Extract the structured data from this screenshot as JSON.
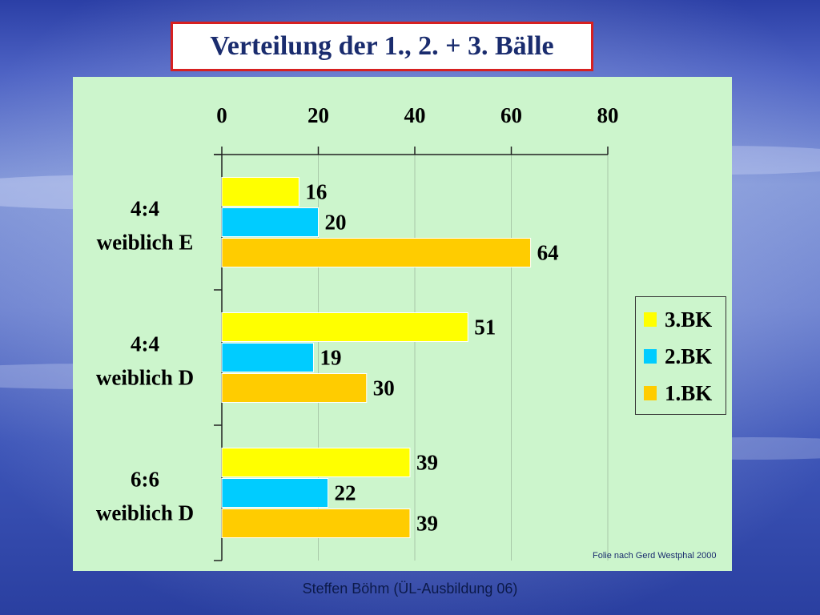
{
  "slide": {
    "title": "Verteilung der 1., 2. + 3. Bälle",
    "credit": "Folie nach Gerd Westphal 2000",
    "footer": "Steffen Böhm (ÜL-Ausbildung 06)"
  },
  "chart_data": {
    "type": "bar",
    "orientation": "horizontal",
    "title": "Verteilung der 1., 2. + 3. Bälle",
    "categories": [
      {
        "line1": "4:4",
        "line2": "weiblich E"
      },
      {
        "line1": "4:4",
        "line2": "weiblich D"
      },
      {
        "line1": "6:6",
        "line2": "weiblich D"
      }
    ],
    "series": [
      {
        "name": "3.BK",
        "color": "#ffff00",
        "values": [
          16,
          51,
          39
        ]
      },
      {
        "name": "2.BK",
        "color": "#00ccff",
        "values": [
          20,
          19,
          22
        ]
      },
      {
        "name": "1.BK",
        "color": "#ffcc00",
        "values": [
          64,
          30,
          39
        ]
      }
    ],
    "xlim": [
      0,
      80
    ],
    "xticks": [
      "0",
      "20",
      "40",
      "60",
      "80"
    ],
    "x_axis_position": "top",
    "grid": true,
    "legend_position": "right"
  },
  "colors": {
    "panel_background": "#ccf5cc",
    "title_border": "#d72020",
    "title_text": "#1a2c6e"
  }
}
